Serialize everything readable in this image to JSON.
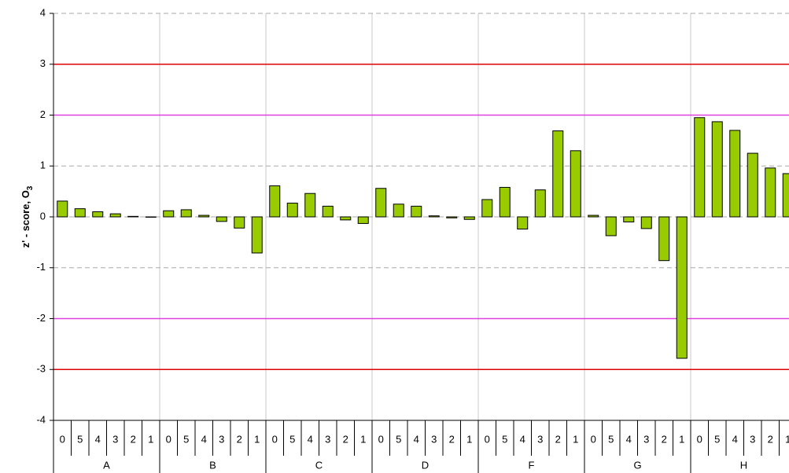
{
  "chart_data": {
    "type": "bar",
    "ylabel": {
      "text": "z' - score, O",
      "subscript": "3"
    },
    "groups": [
      "A",
      "B",
      "C",
      "D",
      "F",
      "G",
      "H"
    ],
    "categories": [
      "0",
      "5",
      "4",
      "3",
      "2",
      "1",
      "0",
      "5",
      "4",
      "3",
      "2",
      "1",
      "0",
      "5",
      "4",
      "3",
      "2",
      "1",
      "0",
      "5",
      "4",
      "3",
      "2",
      "1",
      "0",
      "5",
      "4",
      "3",
      "2",
      "1",
      "0",
      "5",
      "4",
      "3",
      "2",
      "1",
      "0",
      "5",
      "4",
      "3",
      "2",
      "1"
    ],
    "values": [
      0.31,
      0.16,
      0.1,
      0.06,
      0.01,
      0,
      0.12,
      0.14,
      0.03,
      -0.09,
      -0.22,
      -0.71,
      0.61,
      0.27,
      0.46,
      0.21,
      -0.06,
      -0.13,
      0.56,
      0.25,
      0.21,
      0.02,
      -0.02,
      -0.05,
      0.34,
      0.58,
      -0.24,
      0.53,
      1.69,
      1.3,
      0.03,
      -0.37,
      -0.1,
      -0.23,
      -0.86,
      -2.78,
      1.95,
      1.87,
      1.7,
      1.25,
      0.96,
      0.85
    ],
    "color": "#99cc00",
    "ylim": [
      -4,
      4
    ],
    "yticks": [
      -4,
      -3,
      -2,
      -1,
      0,
      1,
      2,
      3,
      4
    ],
    "grid": true,
    "reference_lines": [
      {
        "value": 3,
        "color": "#e00000"
      },
      {
        "value": 2,
        "color": "#e040e0"
      },
      {
        "value": -2,
        "color": "#e040e0"
      },
      {
        "value": -3,
        "color": "#e00000"
      }
    ]
  }
}
